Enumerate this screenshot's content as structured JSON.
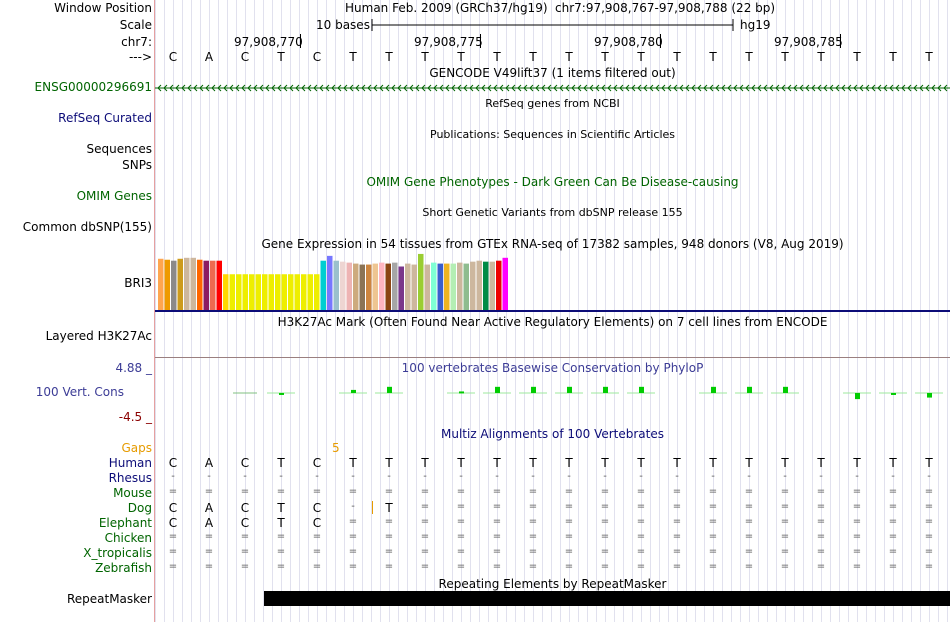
{
  "header": {
    "window_position_label": "Window Position",
    "scale_label": "Scale",
    "chrom_label": "chr7:",
    "arrow_label": "--->",
    "assembly": "Human Feb. 2009 (GRCh37/hg19)",
    "position": "chr7:97,908,767-97,908,788 (22 bp)",
    "scale_text": "10 bases",
    "scale_db": "hg19",
    "coord_ticks": [
      "97,908,770",
      "97,908,775",
      "97,908,780",
      "97,908,785"
    ],
    "sequence": [
      "C",
      "A",
      "C",
      "T",
      "C",
      "T",
      "T",
      "T",
      "T",
      "T",
      "T",
      "T",
      "T",
      "T",
      "T",
      "T",
      "T",
      "T",
      "T",
      "T",
      "T",
      "T"
    ]
  },
  "tracks": {
    "gencode": {
      "title": "GENCODE V49lift37 (1 items filtered out)",
      "label": "ENSG00000296691",
      "color": "#006400"
    },
    "refseq": {
      "title": "RefSeq genes from NCBI",
      "label": "RefSeq Curated",
      "color": "#0c0c78"
    },
    "publications": {
      "title": "Publications: Sequences in Scientific Articles"
    },
    "sequences_label": "Sequences",
    "snps_label": "SNPs",
    "omim": {
      "title": "OMIM Gene Phenotypes - Dark Green Can Be Disease-causing",
      "label": "OMIM Genes",
      "color": "#006400"
    },
    "dbsnp": {
      "title": "Short Genetic Variants from dbSNP release 155",
      "label": "Common dbSNP(155)"
    },
    "gtex": {
      "title": "Gene Expression in 54 tissues from GTEx RNA-seq of 17382 samples, 948 donors (V8, Aug 2019)",
      "label": "BRI3",
      "bar_colors": [
        "#FFA54F",
        "#EE9A00",
        "#8B8989",
        "#CD9B1D",
        "#CDB79E",
        "#CDB79E",
        "#FF6600",
        "#8B1C62",
        "#EE6A50",
        "#FF0000",
        "#FFD700",
        "#EEEE00",
        "#EEEE00",
        "#EEEE00",
        "#EEEE00",
        "#EEEE00",
        "#EEEE00",
        "#EEEE00",
        "#EEEE00",
        "#EEEE00",
        "#EEEE00",
        "#EEEE00",
        "#EEEE00",
        "#EEEE00",
        "#EEEE00",
        "#00CED1",
        "#7777FF",
        "#9AC0CD",
        "#EED5D2",
        "#EEB4B4",
        "#CDAA7D",
        "#8B7355",
        "#CD853F",
        "#EEC591",
        "#FFB6C1",
        "#8B4513",
        "#A6A6A6",
        "#7A378B",
        "#CDB79E",
        "#CDB79E",
        "#9ACD32",
        "#CDB79E",
        "#7FFFD4",
        "#3A5FCD",
        "#EEB422",
        "#B4EEB4",
        "#CDB79E",
        "#8FBC8F",
        "#CDB79E",
        "#CDB79E",
        "#008B45",
        "#CDB79E",
        "#EE0000",
        "#FF00FF"
      ],
      "bar_values": [
        53,
        52,
        51,
        53,
        54,
        54,
        52,
        51,
        51,
        51,
        37,
        37,
        37,
        37,
        37,
        37,
        37,
        37,
        37,
        37,
        37,
        37,
        37,
        37,
        37,
        51,
        56,
        51,
        50,
        49,
        48,
        47,
        47,
        48,
        49,
        48,
        49,
        45,
        48,
        47,
        58,
        47,
        49,
        48,
        48,
        48,
        49,
        48,
        50,
        51,
        50,
        50,
        51,
        54
      ]
    },
    "h3k27ac": {
      "title": "H3K27Ac Mark (Often Found Near Active Regulatory Elements) on 7 cell lines from ENCODE",
      "label": "Layered H3K27Ac"
    },
    "conservation": {
      "title": "100 vertebrates Basewise Conservation by PhyloP",
      "label": "100 Vert. Cons",
      "max_label": "4.88 _",
      "min_label": "-4.5 _",
      "ymax": 4.88,
      "ymin": -4.5,
      "values": [
        0,
        0,
        0,
        -0.1,
        0,
        0.2,
        0.4,
        0,
        0.1,
        0.4,
        0.4,
        0.4,
        0.4,
        0.4,
        0,
        0.4,
        0.4,
        0.4,
        0,
        -0.4,
        -0.1,
        -0.3
      ]
    },
    "multiz": {
      "title": "Multiz Alignments of 100 Vertebrates",
      "gaps_label": "Gaps",
      "gaps_value": "5",
      "species": [
        {
          "name": "Human",
          "seq": [
            "C",
            "A",
            "C",
            "T",
            "C",
            "T",
            "T",
            "T",
            "T",
            "T",
            "T",
            "T",
            "T",
            "T",
            "T",
            "T",
            "T",
            "T",
            "T",
            "T",
            "T",
            "T"
          ]
        },
        {
          "name": "Rhesus",
          "seq": [
            "-",
            "-",
            "-",
            "-",
            "-",
            "-",
            "-",
            "-",
            "-",
            "-",
            "-",
            "-",
            "-",
            "-",
            "-",
            "-",
            "-",
            "-",
            "-",
            "-",
            "-",
            "-"
          ]
        },
        {
          "name": "Mouse",
          "seq": [
            "=",
            "=",
            "=",
            "=",
            "=",
            "=",
            "=",
            "=",
            "=",
            "=",
            "=",
            "=",
            "=",
            "=",
            "=",
            "=",
            "=",
            "=",
            "=",
            "=",
            "=",
            "="
          ]
        },
        {
          "name": "Dog",
          "seq": [
            "C",
            "A",
            "C",
            "T",
            "C",
            "-",
            "T",
            "=",
            "=",
            "=",
            "=",
            "=",
            "=",
            "=",
            "=",
            "=",
            "=",
            "=",
            "=",
            "=",
            "=",
            "="
          ]
        },
        {
          "name": "Elephant",
          "seq": [
            "C",
            "A",
            "C",
            "T",
            "C",
            "=",
            "=",
            "=",
            "=",
            "=",
            "=",
            "=",
            "=",
            "=",
            "=",
            "=",
            "=",
            "=",
            "=",
            "=",
            "=",
            "="
          ]
        },
        {
          "name": "Chicken",
          "seq": [
            "=",
            "=",
            "=",
            "=",
            "=",
            "=",
            "=",
            "=",
            "=",
            "=",
            "=",
            "=",
            "=",
            "=",
            "=",
            "=",
            "=",
            "=",
            "=",
            "=",
            "=",
            "="
          ]
        },
        {
          "name": "X_tropicalis",
          "seq": [
            "=",
            "=",
            "=",
            "=",
            "=",
            "=",
            "=",
            "=",
            "=",
            "=",
            "=",
            "=",
            "=",
            "=",
            "=",
            "=",
            "=",
            "=",
            "=",
            "=",
            "=",
            "="
          ]
        },
        {
          "name": "Zebrafish",
          "seq": [
            "=",
            "=",
            "=",
            "=",
            "=",
            "=",
            "=",
            "=",
            "=",
            "=",
            "=",
            "=",
            "=",
            "=",
            "=",
            "=",
            "=",
            "=",
            "=",
            "=",
            "=",
            "="
          ]
        }
      ]
    },
    "repeatmasker": {
      "title": "Repeating Elements by RepeatMasker",
      "label": "RepeatMasker"
    }
  },
  "colors": {
    "species_label": "#006400",
    "species_label_human": "#0c0c78",
    "conservation_label": "#3c3c96",
    "min_label": "#8b0000",
    "gaps_label": "#e69b00",
    "conservation_bar": "#00cc00"
  }
}
